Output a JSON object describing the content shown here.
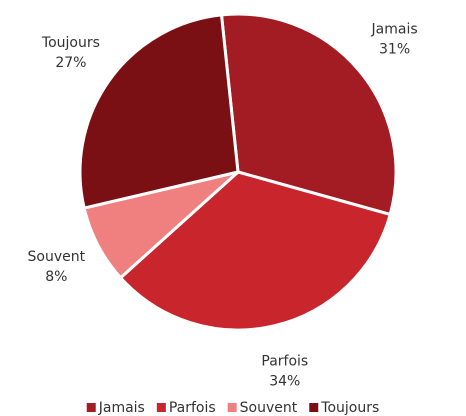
{
  "chart_data": {
    "type": "pie",
    "categories": [
      "Jamais",
      "Parfois",
      "Souvent",
      "Toujours"
    ],
    "values": [
      31,
      34,
      8,
      27
    ],
    "value_labels": [
      "31%",
      "34%",
      "8%",
      "27%"
    ],
    "colors": [
      "#a31c24",
      "#c8252d",
      "#f08080",
      "#7a1014"
    ],
    "legend": "bottom"
  }
}
